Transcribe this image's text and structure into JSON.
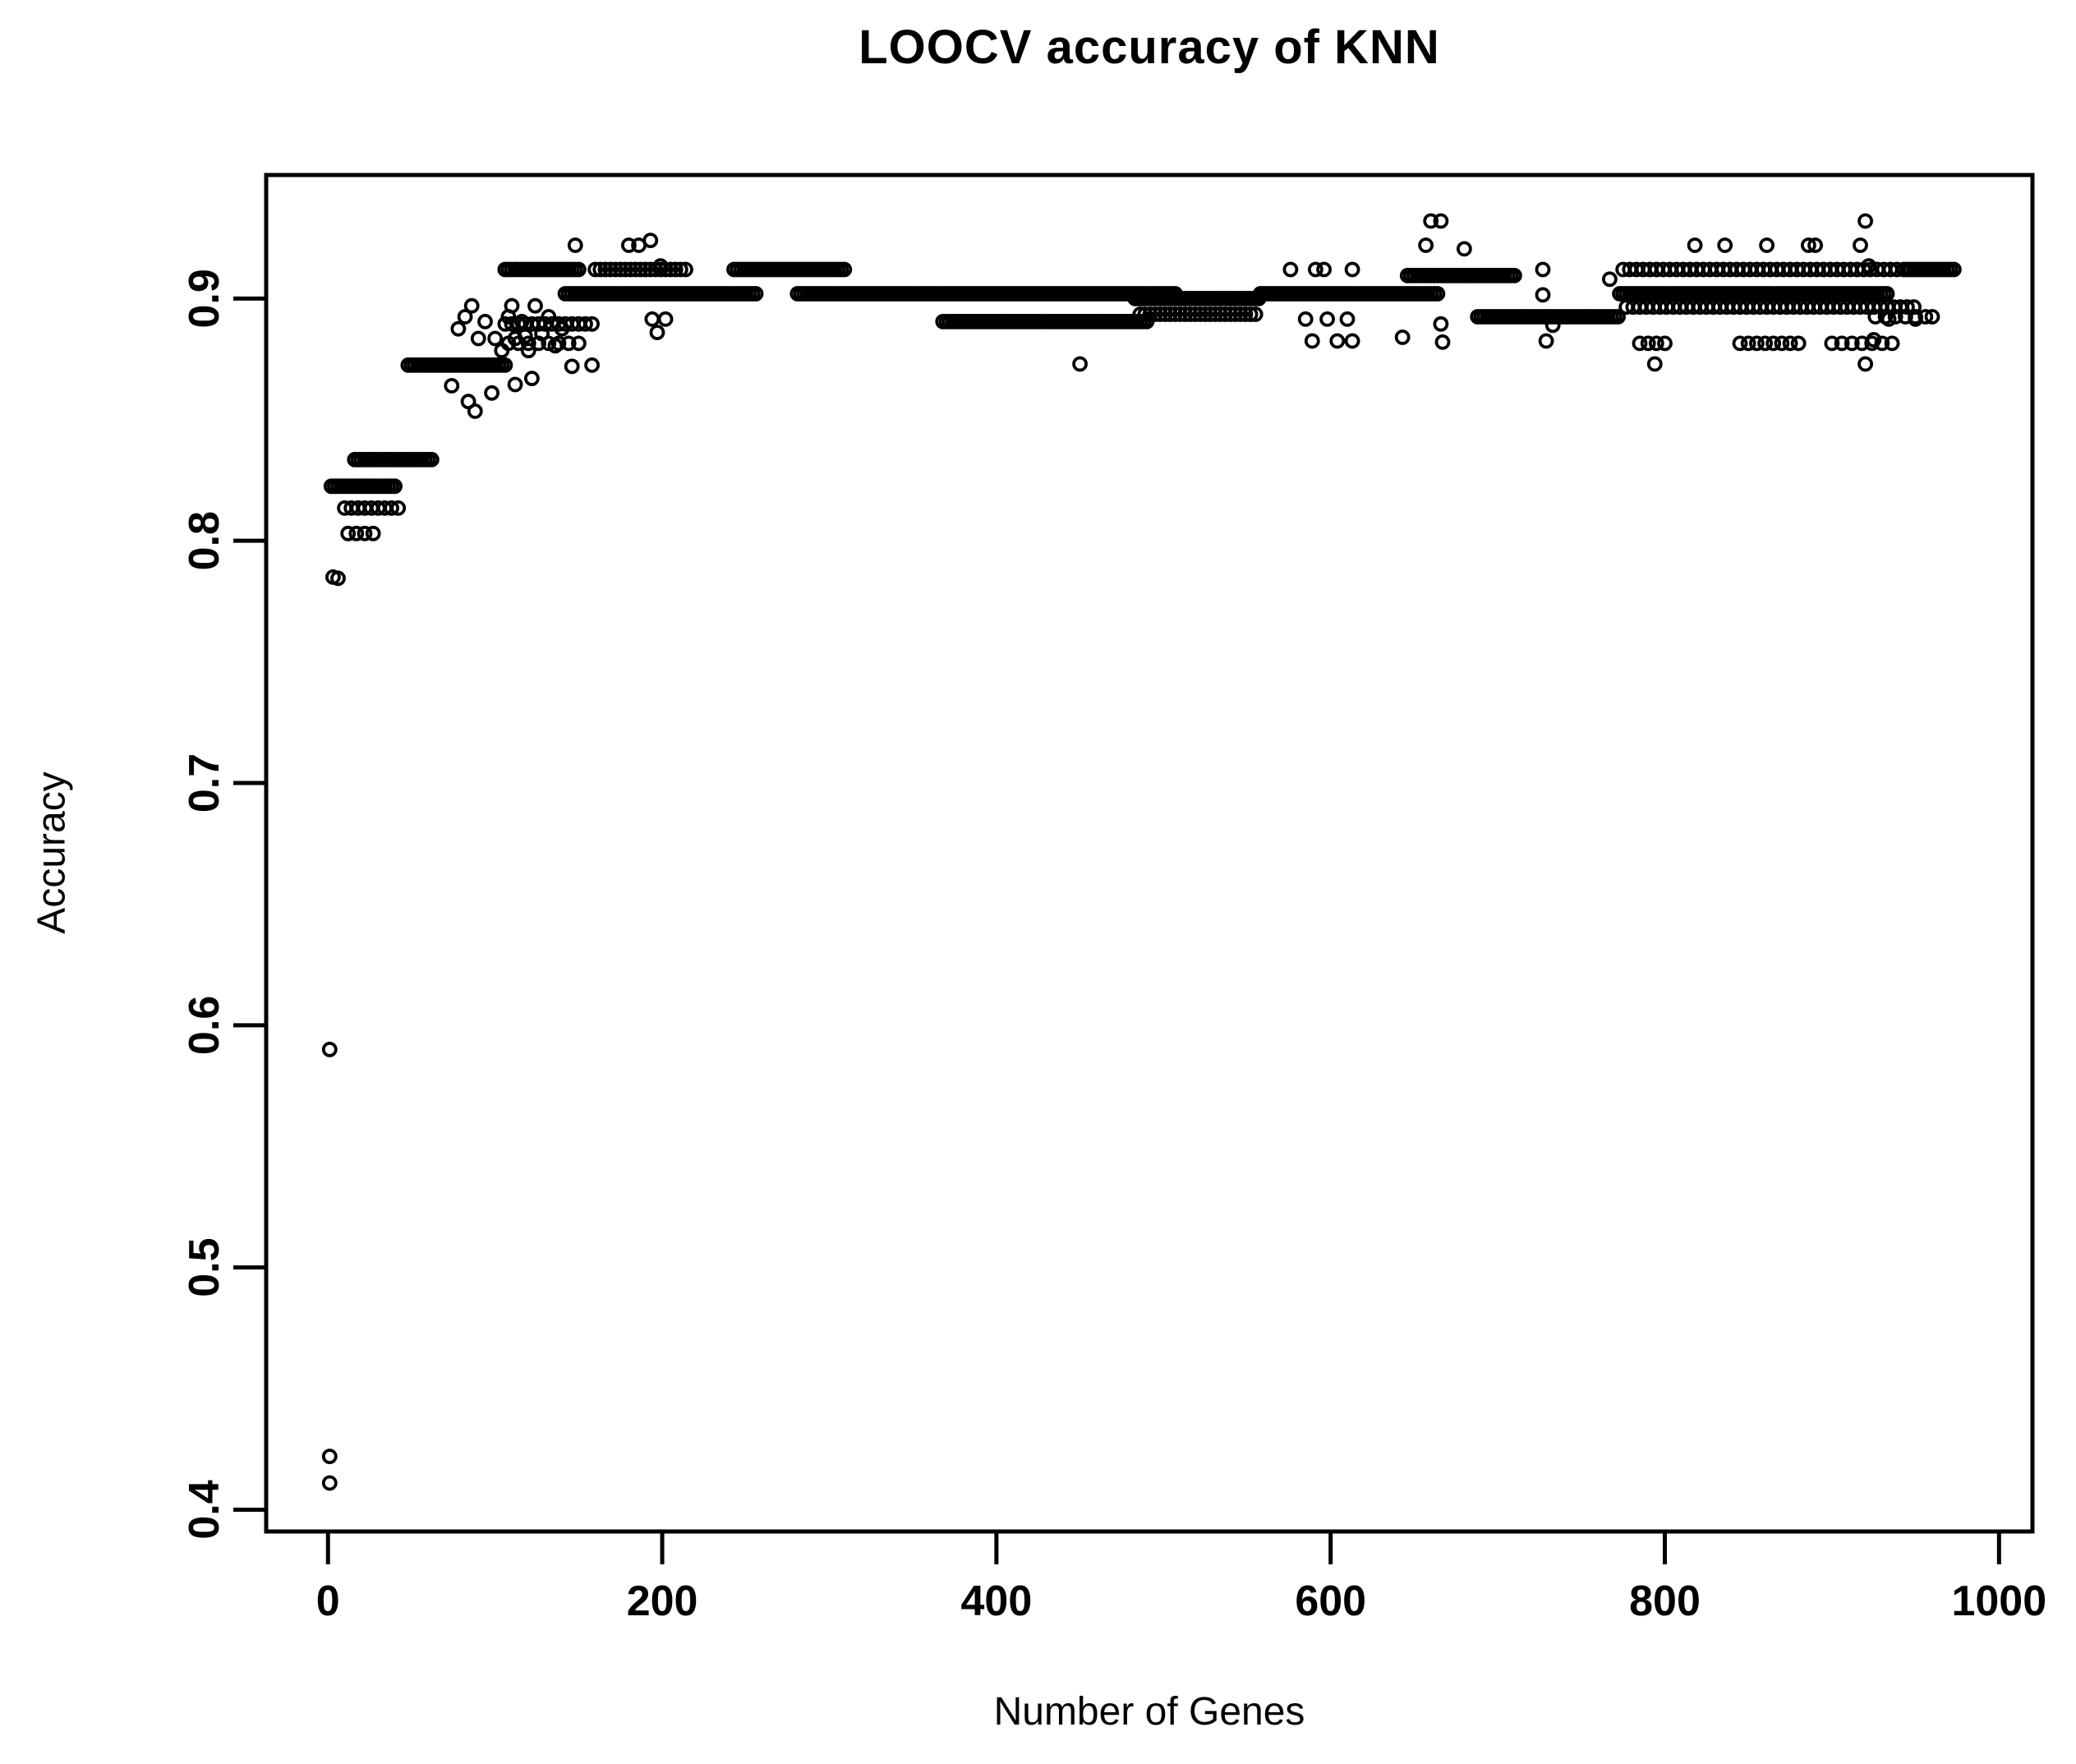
{
  "title": "LOOCV accuracy of KNN",
  "x_axis": {
    "label": "Number of Genes",
    "tick_values": [
      0,
      200,
      400,
      600,
      800,
      1000
    ],
    "tick_labels": [
      "0",
      "200",
      "400",
      "600",
      "800",
      "1000"
    ],
    "range": [
      -37,
      1020
    ]
  },
  "y_axis": {
    "label": "Accuracy",
    "tick_values": [
      0.4,
      0.5,
      0.6,
      0.7,
      0.8,
      0.9
    ],
    "tick_labels": [
      "0.4",
      "0.5",
      "0.6",
      "0.7",
      "0.8",
      "0.9"
    ],
    "range": [
      0.391,
      0.951
    ]
  },
  "chart_data": {
    "type": "scatter",
    "title": "LOOCV accuracy of KNN",
    "xlabel": "Number of Genes",
    "ylabel": "Accuracy",
    "xlim": [
      -37,
      1020
    ],
    "ylim": [
      0.391,
      0.951
    ],
    "grid": false,
    "legend": null,
    "marker": {
      "shape": "open-circle",
      "color": "#000000",
      "radius_px": 7.5,
      "stroke_px": 3.8
    },
    "bands_format": "[gene_start, gene_end, gene_step, accuracy] — horizontal runs of overplotted points",
    "bands": [
      [
        2,
        40,
        2,
        0.8225
      ],
      [
        16,
        62,
        2,
        0.8335
      ],
      [
        10,
        42,
        4,
        0.8135
      ],
      [
        12,
        30,
        5,
        0.803
      ],
      [
        48,
        106,
        2,
        0.8725
      ],
      [
        106,
        150,
        2,
        0.912
      ],
      [
        160,
        214,
        3,
        0.912
      ],
      [
        243,
        309,
        2,
        0.912
      ],
      [
        142,
        256,
        2,
        0.902
      ],
      [
        281,
        508,
        2,
        0.902
      ],
      [
        368,
        490,
        2,
        0.8905
      ],
      [
        483,
        558,
        2,
        0.9
      ],
      [
        486,
        556,
        3,
        0.8935
      ],
      [
        558,
        664,
        2,
        0.902
      ],
      [
        646,
        710,
        2,
        0.9095
      ],
      [
        688,
        772,
        2,
        0.8925
      ],
      [
        773,
        933,
        2,
        0.902
      ],
      [
        775,
        939,
        4,
        0.912
      ],
      [
        777,
        949,
        4,
        0.8965
      ],
      [
        943,
        973,
        2,
        0.912
      ],
      [
        926,
        956,
        6,
        0.8925
      ],
      [
        785,
        801,
        5,
        0.8815
      ],
      [
        845,
        883,
        5,
        0.8815
      ],
      [
        900,
        938,
        6,
        0.8815
      ],
      [
        106,
        158,
        4,
        0.8895
      ],
      [
        108,
        152,
        6,
        0.8815
      ]
    ],
    "points_format": "[number_of_genes, accuracy] — individual visible points / outliers",
    "points": [
      [
        1,
        0.422
      ],
      [
        1,
        0.411
      ],
      [
        1,
        0.59
      ],
      [
        3,
        0.785
      ],
      [
        6,
        0.7845
      ],
      [
        74,
        0.864
      ],
      [
        84,
        0.8575
      ],
      [
        88,
        0.8535
      ],
      [
        98,
        0.861
      ],
      [
        112,
        0.8645
      ],
      [
        122,
        0.867
      ],
      [
        146,
        0.872
      ],
      [
        158,
        0.8725
      ],
      [
        78,
        0.8875
      ],
      [
        82,
        0.8925
      ],
      [
        86,
        0.897
      ],
      [
        90,
        0.8835
      ],
      [
        94,
        0.8905
      ],
      [
        100,
        0.8835
      ],
      [
        104,
        0.8785
      ],
      [
        108,
        0.8925
      ],
      [
        112,
        0.8835
      ],
      [
        116,
        0.8905
      ],
      [
        120,
        0.8785
      ],
      [
        124,
        0.897
      ],
      [
        128,
        0.8855
      ],
      [
        132,
        0.8925
      ],
      [
        136,
        0.8805
      ],
      [
        140,
        0.8875
      ],
      [
        110,
        0.897
      ],
      [
        118,
        0.8845
      ],
      [
        148,
        0.922
      ],
      [
        180,
        0.922
      ],
      [
        186,
        0.922
      ],
      [
        193,
        0.924
      ],
      [
        199,
        0.9135
      ],
      [
        194,
        0.8915
      ],
      [
        197,
        0.886
      ],
      [
        202,
        0.8915
      ],
      [
        450,
        0.873
      ],
      [
        576,
        0.912
      ],
      [
        591,
        0.912
      ],
      [
        596,
        0.912
      ],
      [
        613,
        0.912
      ],
      [
        657,
        0.922
      ],
      [
        660,
        0.932
      ],
      [
        666,
        0.932
      ],
      [
        680,
        0.9205
      ],
      [
        727,
        0.912
      ],
      [
        727,
        0.9015
      ],
      [
        767,
        0.908
      ],
      [
        585,
        0.8915
      ],
      [
        598,
        0.8915
      ],
      [
        610,
        0.8915
      ],
      [
        666,
        0.8895
      ],
      [
        589,
        0.8825
      ],
      [
        604,
        0.8825
      ],
      [
        613,
        0.8825
      ],
      [
        643,
        0.884
      ],
      [
        667,
        0.882
      ],
      [
        729,
        0.8825
      ],
      [
        733,
        0.889
      ],
      [
        818,
        0.922
      ],
      [
        836,
        0.922
      ],
      [
        861,
        0.922
      ],
      [
        886,
        0.922
      ],
      [
        890,
        0.922
      ],
      [
        917,
        0.922
      ],
      [
        920,
        0.932
      ],
      [
        922,
        0.9135
      ],
      [
        934,
        0.8915
      ],
      [
        950,
        0.8915
      ],
      [
        925,
        0.883
      ],
      [
        794,
        0.873
      ],
      [
        920,
        0.873
      ],
      [
        960,
        0.8925
      ]
    ]
  }
}
